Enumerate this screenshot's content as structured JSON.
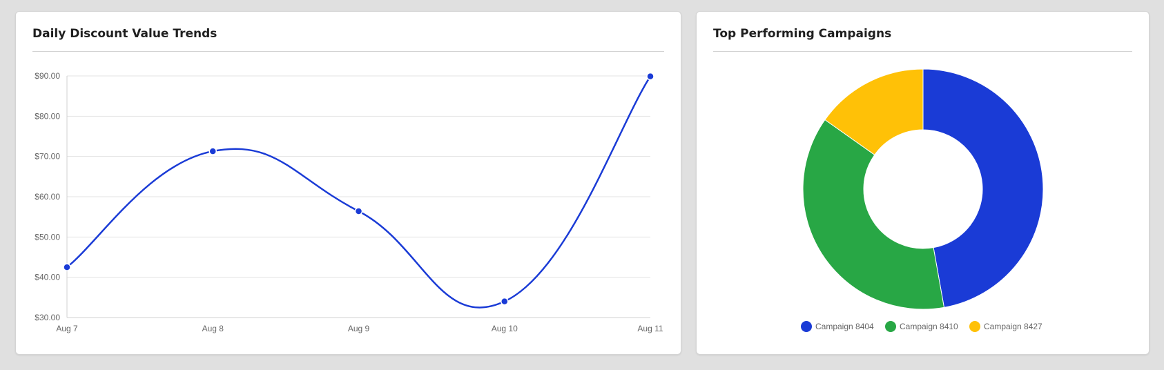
{
  "line_card": {
    "title": "Daily Discount Value Trends"
  },
  "donut_card": {
    "title": "Top Performing Campaigns"
  },
  "chart_data": [
    {
      "type": "line",
      "title": "Daily Discount Value Trends",
      "categories": [
        "Aug 7",
        "Aug 8",
        "Aug 9",
        "Aug 10",
        "Aug 11"
      ],
      "series": [
        {
          "values": [
            42.5,
            71.3,
            56.4,
            34.0,
            89.9
          ],
          "color": "#1a3bd6"
        }
      ],
      "ylim": [
        30,
        90
      ],
      "yticks": [
        30,
        40,
        50,
        60,
        70,
        80,
        90
      ],
      "ytick_labels": [
        "$30.00",
        "$40.00",
        "$50.00",
        "$60.00",
        "$70.00",
        "$80.00",
        "$90.00"
      ],
      "grid": true,
      "curve": "smooth"
    },
    {
      "type": "pie",
      "variant": "donut",
      "title": "Top Performing Campaigns",
      "labels": [
        "Campaign 8404",
        "Campaign 8410",
        "Campaign 8427"
      ],
      "values": [
        47.2,
        37.6,
        15.2
      ],
      "colors": [
        "#1a3bd6",
        "#28a745",
        "#ffc107"
      ],
      "legend": "bottom"
    }
  ]
}
